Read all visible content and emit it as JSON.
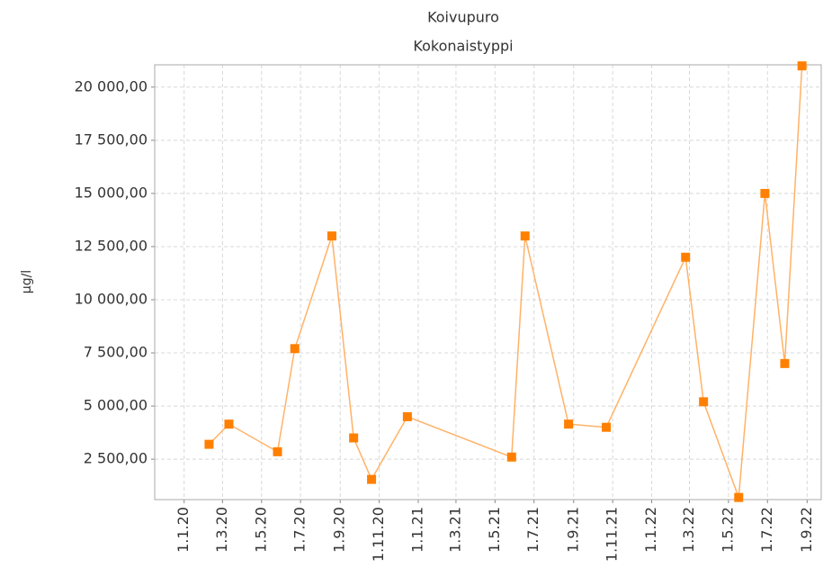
{
  "chart_data": {
    "type": "line",
    "title": "Koivupuro",
    "subtitle": "Kokonaistyppi",
    "y_label": "µg/l",
    "x": [
      "2020-02-09",
      "2020-03-11",
      "2020-05-26",
      "2020-06-22",
      "2020-08-19",
      "2020-09-22",
      "2020-10-20",
      "2020-12-15",
      "2021-05-27",
      "2021-06-17",
      "2021-08-24",
      "2021-10-22",
      "2022-02-23",
      "2022-03-23",
      "2022-05-17",
      "2022-06-27",
      "2022-07-28",
      "2022-08-24"
    ],
    "series": [
      {
        "name": "Kokonaistyppi",
        "color": "#ff8000",
        "line_color": "#ffb266",
        "values": [
          3200,
          4150,
          2850,
          7700,
          13000,
          3500,
          1550,
          4500,
          2600,
          13000,
          4150,
          4000,
          12000,
          5200,
          700,
          15000,
          7000,
          21000
        ]
      }
    ],
    "xlim": [
      "2019-11-16",
      "2022-09-23"
    ],
    "xticks": [
      {
        "value": "2020-01-01",
        "label": "1.1.20"
      },
      {
        "value": "2020-03-01",
        "label": "1.3.20"
      },
      {
        "value": "2020-05-01",
        "label": "1.5.20"
      },
      {
        "value": "2020-07-01",
        "label": "1.7.20"
      },
      {
        "value": "2020-09-01",
        "label": "1.9.20"
      },
      {
        "value": "2020-11-01",
        "label": "1.11.20"
      },
      {
        "value": "2021-01-01",
        "label": "1.1.21"
      },
      {
        "value": "2021-03-01",
        "label": "1.3.21"
      },
      {
        "value": "2021-05-01",
        "label": "1.5.21"
      },
      {
        "value": "2021-07-01",
        "label": "1.7.21"
      },
      {
        "value": "2021-09-01",
        "label": "1.9.21"
      },
      {
        "value": "2021-11-01",
        "label": "1.11.21"
      },
      {
        "value": "2022-01-01",
        "label": "1.1.22"
      },
      {
        "value": "2022-03-01",
        "label": "1.3.22"
      },
      {
        "value": "2022-05-01",
        "label": "1.5.22"
      },
      {
        "value": "2022-07-01",
        "label": "1.7.22"
      },
      {
        "value": "2022-09-01",
        "label": "1.9.22"
      }
    ],
    "ylim": [
      600,
      21050
    ],
    "yticks": [
      {
        "value": 2500,
        "label": "2 500,00"
      },
      {
        "value": 5000,
        "label": "5 000,00"
      },
      {
        "value": 7500,
        "label": "7 500,00"
      },
      {
        "value": 10000,
        "label": "10 000,00"
      },
      {
        "value": 12500,
        "label": "12 500,00"
      },
      {
        "value": 15000,
        "label": "15 000,00"
      },
      {
        "value": 17500,
        "label": "17 500,00"
      },
      {
        "value": 20000,
        "label": "20 000,00"
      }
    ],
    "grid": true
  }
}
